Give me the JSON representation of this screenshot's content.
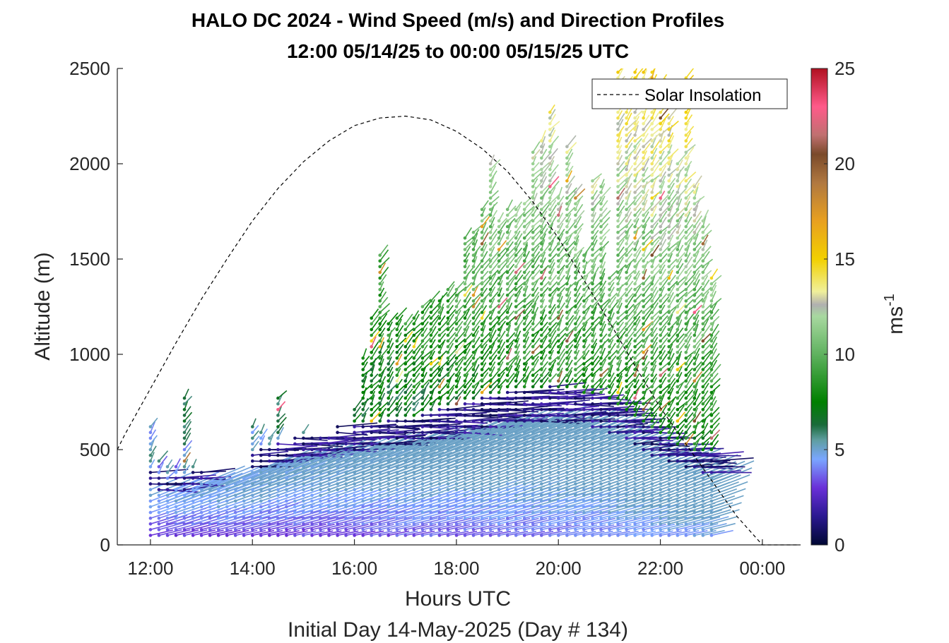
{
  "chart_data": {
    "type": "wind-barb-profile",
    "title": "HALO DC 2024 - Wind Speed (m/s) and Direction Profiles",
    "subtitle": "12:00 05/14/25 to 00:00 05/15/25  UTC",
    "xlabel": "Hours UTC",
    "ylabel": "Altitude (m)",
    "footnote": "Initial Day 14-May-2025 (Day # 134)",
    "xlim": [
      11.35,
      24.75
    ],
    "ylim": [
      0,
      2500
    ],
    "x_ticks": [
      {
        "value": 12,
        "label": "12:00"
      },
      {
        "value": 14,
        "label": "14:00"
      },
      {
        "value": 16,
        "label": "16:00"
      },
      {
        "value": 18,
        "label": "18:00"
      },
      {
        "value": 20,
        "label": "20:00"
      },
      {
        "value": 22,
        "label": "22:00"
      },
      {
        "value": 24,
        "label": "00:00"
      }
    ],
    "y_ticks": [
      {
        "value": 0,
        "label": "0"
      },
      {
        "value": 500,
        "label": "500"
      },
      {
        "value": 1000,
        "label": "1000"
      },
      {
        "value": 1500,
        "label": "1500"
      },
      {
        "value": 2000,
        "label": "2000"
      },
      {
        "value": 2500,
        "label": "2500"
      }
    ],
    "legend": {
      "label": "Solar Insolation",
      "placement": "top-right"
    },
    "solar_insolation": {
      "x": [
        11.35,
        11.5,
        12.0,
        12.5,
        13.0,
        13.5,
        14.0,
        14.5,
        15.0,
        15.5,
        16.0,
        16.5,
        17.0,
        17.5,
        18.0,
        18.5,
        19.0,
        19.5,
        20.0,
        20.5,
        21.0,
        21.5,
        22.0,
        22.5,
        23.0,
        23.5,
        24.0,
        24.7
      ],
      "y": [
        500,
        580,
        820,
        1060,
        1290,
        1500,
        1700,
        1870,
        2010,
        2120,
        2200,
        2240,
        2250,
        2230,
        2170,
        2080,
        1960,
        1800,
        1610,
        1390,
        1170,
        940,
        720,
        530,
        340,
        150,
        0,
        0
      ]
    },
    "colorbar": {
      "label": "ms",
      "label_superscript": "-1",
      "min": 0,
      "max": 25,
      "ticks": [
        {
          "value": 0,
          "label": "0"
        },
        {
          "value": 5,
          "label": "5"
        },
        {
          "value": 10,
          "label": "10"
        },
        {
          "value": 15,
          "label": "15"
        },
        {
          "value": 20,
          "label": "20"
        },
        {
          "value": 25,
          "label": "25"
        }
      ],
      "colors": [
        {
          "value": 0,
          "color": "#000833"
        },
        {
          "value": 1.5,
          "color": "#2a1890"
        },
        {
          "value": 3,
          "color": "#6a30d8"
        },
        {
          "value": 4.5,
          "color": "#7aa6ff"
        },
        {
          "value": 5.5,
          "color": "#5f9ea0"
        },
        {
          "value": 6.3,
          "color": "#1a6b3a"
        },
        {
          "value": 7.5,
          "color": "#008000"
        },
        {
          "value": 10,
          "color": "#5fb25f"
        },
        {
          "value": 12,
          "color": "#a8d8a0"
        },
        {
          "value": 12.6,
          "color": "#b0b0b0"
        },
        {
          "value": 13.3,
          "color": "#f0f09a"
        },
        {
          "value": 15,
          "color": "#f2d000"
        },
        {
          "value": 17,
          "color": "#e8a020"
        },
        {
          "value": 19,
          "color": "#b07840"
        },
        {
          "value": 20.5,
          "color": "#7a4a2a"
        },
        {
          "value": 21.5,
          "color": "#c07070"
        },
        {
          "value": 23,
          "color": "#ff5a8a"
        },
        {
          "value": 25,
          "color": "#b01020"
        }
      ]
    },
    "profiles": {
      "time_start": 12.0,
      "time_step": 0.1667,
      "count": 67,
      "altitude_start": 50,
      "altitude_step": 30,
      "top_altitudes_m": [
        640,
        460,
        420,
        410,
        780,
        420,
        380,
        340,
        340,
        330,
        340,
        360,
        640,
        600,
        560,
        780,
        520,
        560,
        600,
        580,
        560,
        580,
        620,
        560,
        720,
        1000,
        1200,
        1520,
        1160,
        1200,
        1160,
        1200,
        1260,
        1300,
        1300,
        1360,
        1360,
        1620,
        1660,
        1780,
        2000,
        1720,
        1780,
        1760,
        1800,
        2080,
        2120,
        2290,
        1820,
        2100,
        1860,
        1540,
        1920,
        1900,
        1400,
        2480,
        2420,
        2480,
        2500,
        2520,
        2440,
        2260,
        2020,
        2460,
        1880,
        1700,
        1400
      ],
      "mixing_layer_top_m": [
        340,
        310,
        300,
        330,
        320,
        340,
        360,
        360,
        380,
        390,
        400,
        420,
        430,
        440,
        460,
        470,
        480,
        500,
        510,
        520,
        520,
        530,
        540,
        540,
        550,
        550,
        560,
        560,
        570,
        570,
        580,
        590,
        600,
        610,
        620,
        630,
        640,
        650,
        660,
        670,
        680,
        690,
        700,
        700,
        710,
        720,
        720,
        730,
        720,
        710,
        700,
        690,
        680,
        670,
        650,
        630,
        600,
        580,
        550,
        520,
        500,
        480,
        460,
        440,
        430,
        420,
        410
      ]
    }
  }
}
